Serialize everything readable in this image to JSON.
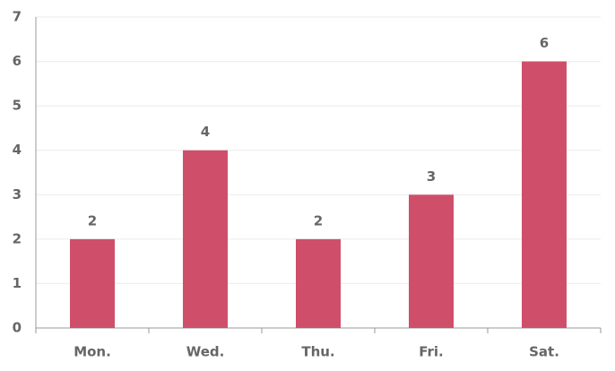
{
  "chart_data": {
    "type": "bar",
    "categories": [
      "Mon.",
      "Wed.",
      "Thu.",
      "Fri.",
      "Sat."
    ],
    "values": [
      2,
      4,
      2,
      3,
      6
    ],
    "color": "#cf4f6b",
    "ylim": [
      0,
      7
    ],
    "yticks": [
      0,
      1,
      2,
      3,
      4,
      5,
      6,
      7
    ],
    "grid": true,
    "data_labels": true
  }
}
